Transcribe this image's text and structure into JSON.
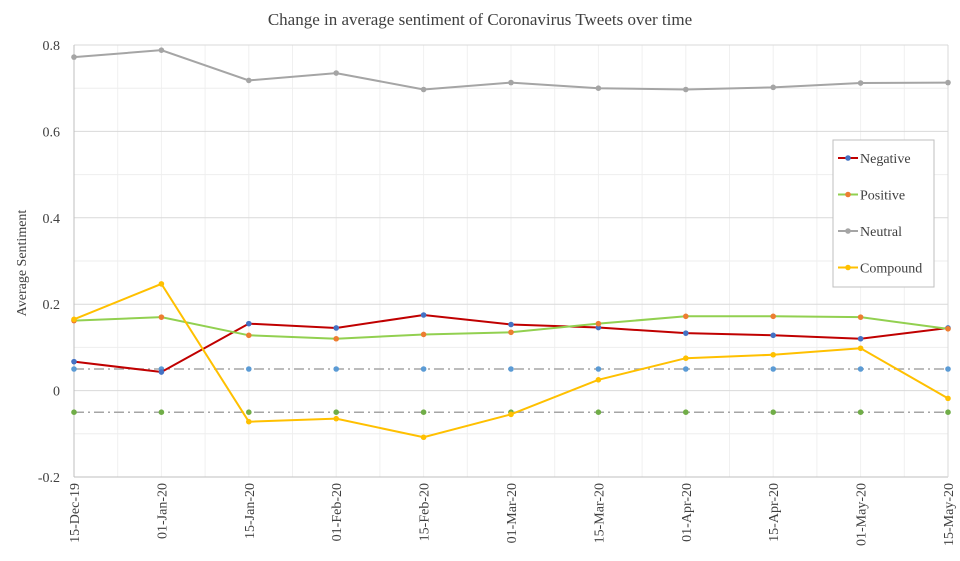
{
  "chart_data": {
    "type": "line",
    "title": "Change in average sentiment of Coronavirus Tweets over time",
    "ylabel": "Average Sentiment",
    "xlabel": "",
    "ylim": [
      -0.2,
      0.8
    ],
    "yticks": [
      -0.2,
      0,
      0.2,
      0.4,
      0.6,
      0.8
    ],
    "ytick_labels": [
      "-0.2",
      "0",
      "0.2",
      "0.4",
      "0.6",
      "0.8"
    ],
    "grid": "both",
    "legend_position": "right",
    "categories": [
      "15-Dec-19",
      "01-Jan-20",
      "15-Jan-20",
      "01-Feb-20",
      "15-Feb-20",
      "01-Mar-20",
      "15-Mar-20",
      "01-Apr-20",
      "15-Apr-20",
      "01-May-20",
      "15-May-20"
    ],
    "series": [
      {
        "name": "Negative",
        "color": "#c00000",
        "marker_color": "#4472c4",
        "values": [
          0.067,
          0.043,
          0.155,
          0.145,
          0.175,
          0.153,
          0.146,
          0.133,
          0.128,
          0.12,
          0.145
        ]
      },
      {
        "name": "Positive",
        "color": "#92d050",
        "marker_color": "#ed7d31",
        "values": [
          0.162,
          0.17,
          0.128,
          0.12,
          0.13,
          0.135,
          0.155,
          0.172,
          0.172,
          0.17,
          0.143
        ]
      },
      {
        "name": "Neutral",
        "color": "#a5a5a5",
        "marker_color": "#a5a5a5",
        "values": [
          0.772,
          0.788,
          0.718,
          0.735,
          0.697,
          0.713,
          0.7,
          0.697,
          0.702,
          0.712,
          0.713
        ]
      },
      {
        "name": "Compound",
        "color": "#ffc000",
        "marker_color": "#ffc000",
        "values": [
          0.165,
          0.247,
          -0.072,
          -0.065,
          -0.108,
          -0.055,
          0.025,
          0.075,
          0.083,
          0.098,
          -0.018
        ]
      }
    ],
    "reference_lines": [
      {
        "value": 0.05,
        "color": "#a5a5a5",
        "marker_color": "#5b9bd5"
      },
      {
        "value": -0.05,
        "color": "#a5a5a5",
        "marker_color": "#70ad47"
      }
    ]
  }
}
